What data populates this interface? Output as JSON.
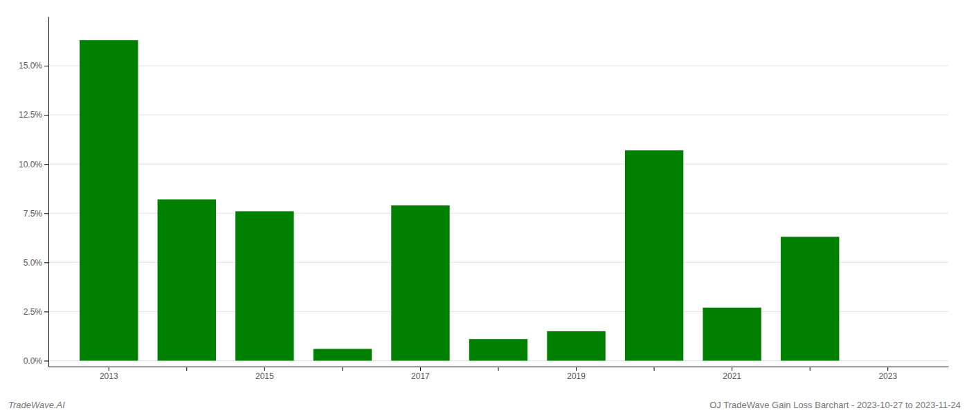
{
  "chart_data": {
    "type": "bar",
    "title": "OJ TradeWave Gain Loss Barchart - 2023-10-27 to 2023-11-24",
    "annotations": [
      "TradeWave.AI"
    ],
    "categories": [
      "2013",
      null,
      "2015",
      null,
      "2017",
      null,
      "2019",
      null,
      "2021",
      null,
      "2023"
    ],
    "values": [
      0.163,
      0.082,
      0.076,
      0.006,
      0.079,
      0.011,
      0.015,
      0.107,
      0.027,
      0.063,
      0.0
    ],
    "color": "#008000",
    "ylim": [
      -0.003,
      0.175
    ],
    "yticks": [
      {
        "value": 0.0,
        "label": "0.0%"
      },
      {
        "value": 0.025,
        "label": "2.5%"
      },
      {
        "value": 0.05,
        "label": "5.0%"
      },
      {
        "value": 0.075,
        "label": "7.5%"
      },
      {
        "value": 0.1,
        "label": "10.0%"
      },
      {
        "value": 0.125,
        "label": "12.5%"
      },
      {
        "value": 0.15,
        "label": "15.0%"
      }
    ],
    "grid": true
  }
}
